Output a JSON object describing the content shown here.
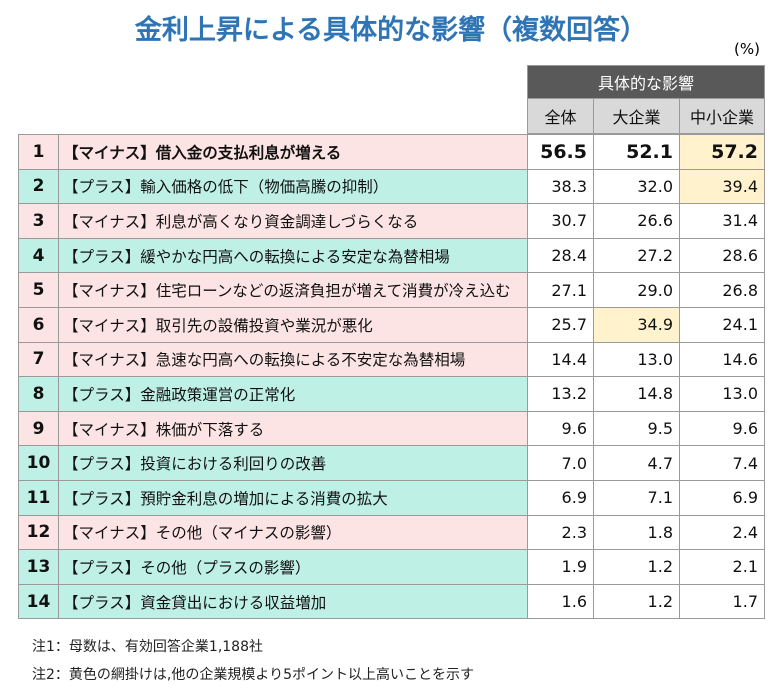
{
  "title": "金利上昇による具体的な影響（複数回答）",
  "unit": "(%)",
  "table": {
    "group_header": "具体的な影響",
    "columns": [
      "全体",
      "大企業",
      "中小企業"
    ],
    "rows": [
      {
        "rank": "1",
        "label": "【マイナス】借入金の支払利息が増える",
        "values": [
          "56.5",
          "52.1",
          "57.2"
        ],
        "color": "#fde4e4",
        "bold": true,
        "highlight": [
          2
        ]
      },
      {
        "rank": "2",
        "label": "【プラス】輸入価格の低下（物価高騰の抑制）",
        "values": [
          "38.3",
          "32.0",
          "39.4"
        ],
        "color": "#bff0e6",
        "bold": false,
        "highlight": [
          2
        ]
      },
      {
        "rank": "3",
        "label": "【マイナス】利息が高くなり資金調達しづらくなる",
        "values": [
          "30.7",
          "26.6",
          "31.4"
        ],
        "color": "#fde4e4",
        "bold": false,
        "highlight": []
      },
      {
        "rank": "4",
        "label": "【プラス】緩やかな円高への転換による安定な為替相場",
        "values": [
          "28.4",
          "27.2",
          "28.6"
        ],
        "color": "#bff0e6",
        "bold": false,
        "highlight": []
      },
      {
        "rank": "5",
        "label": "【マイナス】住宅ローンなどの返済負担が増えて消費が冷え込む",
        "values": [
          "27.1",
          "29.0",
          "26.8"
        ],
        "color": "#fde4e4",
        "bold": false,
        "highlight": []
      },
      {
        "rank": "6",
        "label": "【マイナス】取引先の設備投資や業況が悪化",
        "values": [
          "25.7",
          "34.9",
          "24.1"
        ],
        "color": "#fde4e4",
        "bold": false,
        "highlight": [
          1
        ]
      },
      {
        "rank": "7",
        "label": "【マイナス】急速な円高への転換による不安定な為替相場",
        "values": [
          "14.4",
          "13.0",
          "14.6"
        ],
        "color": "#fde4e4",
        "bold": false,
        "highlight": []
      },
      {
        "rank": "8",
        "label": "【プラス】金融政策運営の正常化",
        "values": [
          "13.2",
          "14.8",
          "13.0"
        ],
        "color": "#bff0e6",
        "bold": false,
        "highlight": []
      },
      {
        "rank": "9",
        "label": "【マイナス】株価が下落する",
        "values": [
          "9.6",
          "9.5",
          "9.6"
        ],
        "color": "#fde4e4",
        "bold": false,
        "highlight": []
      },
      {
        "rank": "10",
        "label": "【プラス】投資における利回りの改善",
        "values": [
          "7.0",
          "4.7",
          "7.4"
        ],
        "color": "#bff0e6",
        "bold": false,
        "highlight": []
      },
      {
        "rank": "11",
        "label": "【プラス】預貯金利息の増加による消費の拡大",
        "values": [
          "6.9",
          "7.1",
          "6.9"
        ],
        "color": "#bff0e6",
        "bold": false,
        "highlight": []
      },
      {
        "rank": "12",
        "label": "【マイナス】その他（マイナスの影響）",
        "values": [
          "2.3",
          "1.8",
          "2.4"
        ],
        "color": "#fde4e4",
        "bold": false,
        "highlight": []
      },
      {
        "rank": "13",
        "label": "【プラス】その他（プラスの影響）",
        "values": [
          "1.9",
          "1.2",
          "2.1"
        ],
        "color": "#bff0e6",
        "bold": false,
        "highlight": []
      },
      {
        "rank": "14",
        "label": "【プラス】資金貸出における収益増加",
        "values": [
          "1.6",
          "1.2",
          "1.7"
        ],
        "color": "#bff0e6",
        "bold": false,
        "highlight": []
      }
    ],
    "highlight_color": "#fff2cc"
  },
  "notes": [
    "注1：母数は、有効回答企業1,188社",
    "注2：黄色の網掛けは,他の企業規模より5ポイント以上高いことを示す"
  ]
}
